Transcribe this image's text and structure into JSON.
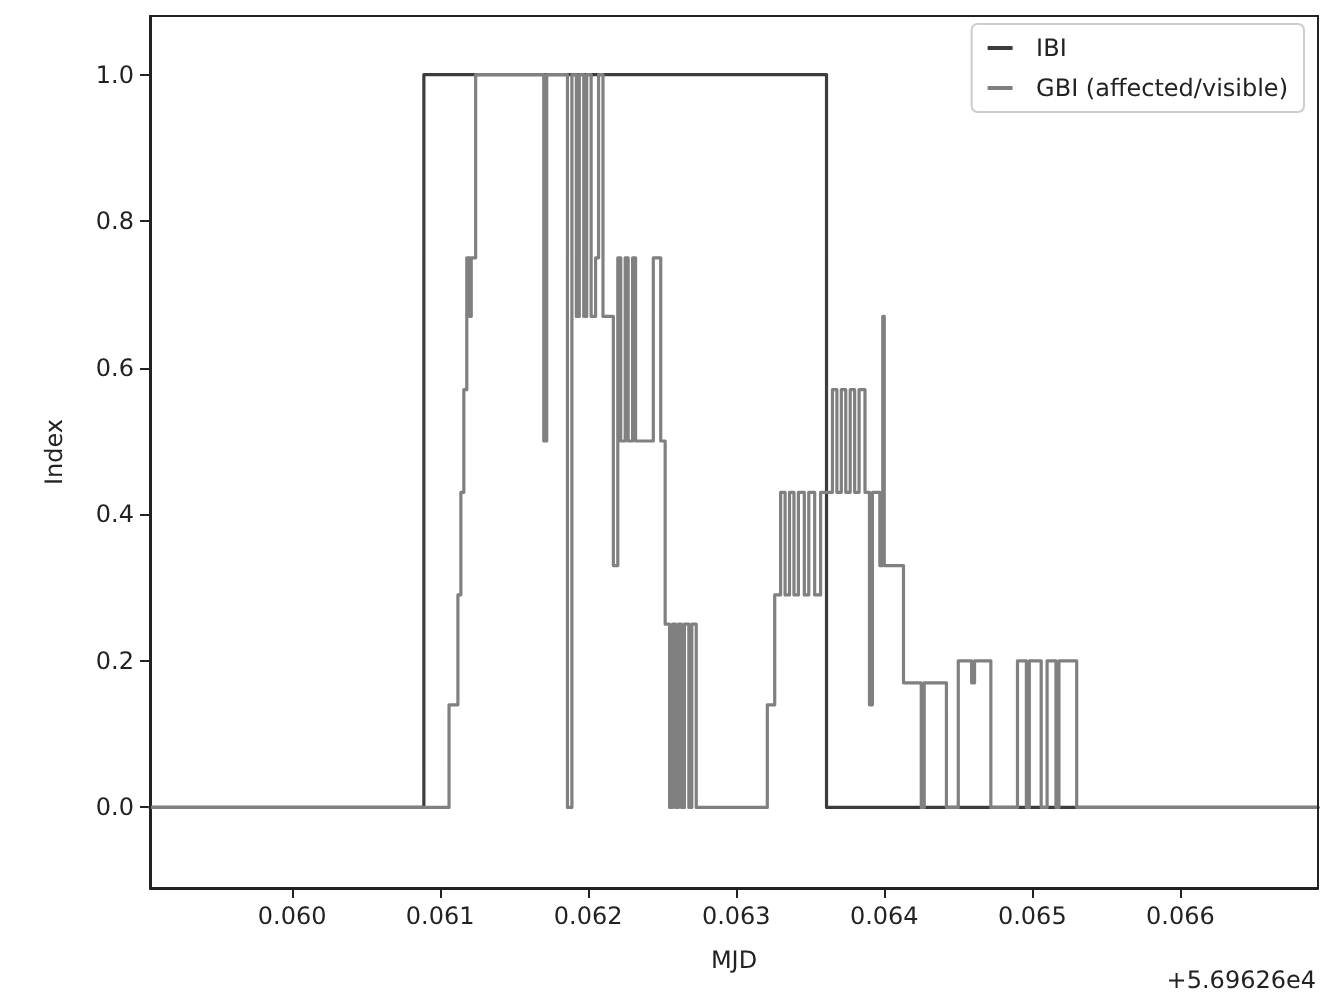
{
  "chart_data": {
    "type": "step",
    "xlabel": "MJD",
    "ylabel": "Index",
    "annotations": [
      "+5.69626e4"
    ],
    "xlim": [
      0.05904,
      0.06693
    ],
    "xticks": [
      {
        "value": 0.06,
        "label": "0.060"
      },
      {
        "value": 0.061,
        "label": "0.061"
      },
      {
        "value": 0.062,
        "label": "0.062"
      },
      {
        "value": 0.063,
        "label": "0.063"
      },
      {
        "value": 0.064,
        "label": "0.064"
      },
      {
        "value": 0.065,
        "label": "0.065"
      },
      {
        "value": 0.066,
        "label": "0.066"
      }
    ],
    "ylim": [
      -0.11,
      1.08
    ],
    "yticks": [
      {
        "value": 0,
        "label": "0.0"
      },
      {
        "value": 0.2,
        "label": "0.2"
      },
      {
        "value": 0.4,
        "label": "0.4"
      },
      {
        "value": 0.6,
        "label": "0.6"
      },
      {
        "value": 0.8,
        "label": "0.8"
      },
      {
        "value": 1.0,
        "label": "1.0"
      }
    ],
    "grid": false,
    "legend": "top right",
    "marker": "none",
    "line_style": "solid",
    "series": [
      {
        "name": "IBI",
        "color": "#3c3c3c",
        "x": [
          0.05904,
          0.06089,
          0.06361,
          0.06693
        ],
        "values": [
          0,
          1,
          0,
          0
        ]
      },
      {
        "name": "GBI (affected/visible)",
        "color": "#808080",
        "x": [
          0.05904,
          0.06106,
          0.06112,
          0.06114,
          0.06116,
          0.06118,
          0.0612,
          0.06121,
          0.06124,
          0.0617,
          0.06172,
          0.06186,
          0.06189,
          0.06192,
          0.06194,
          0.06197,
          0.06199,
          0.06202,
          0.06205,
          0.06207,
          0.0621,
          0.06217,
          0.0622,
          0.06222,
          0.06225,
          0.06227,
          0.0623,
          0.06232,
          0.06244,
          0.06249,
          0.06252,
          0.06255,
          0.06257,
          0.06259,
          0.06261,
          0.06263,
          0.06265,
          0.06268,
          0.0627,
          0.06273,
          0.06321,
          0.06326,
          0.0633,
          0.06333,
          0.06336,
          0.06339,
          0.06342,
          0.06346,
          0.06349,
          0.06353,
          0.06357,
          0.06365,
          0.06368,
          0.06371,
          0.06374,
          0.06377,
          0.0638,
          0.06383,
          0.06387,
          0.0639,
          0.06392,
          0.06397,
          0.06399,
          0.064,
          0.06413,
          0.06425,
          0.06427,
          0.06442,
          0.0645,
          0.06459,
          0.06461,
          0.06472,
          0.0649,
          0.06496,
          0.06498,
          0.06506,
          0.0651,
          0.06516,
          0.06518,
          0.0653,
          0.06693
        ],
        "values": [
          0,
          0.14,
          0.29,
          0.43,
          0.57,
          0.75,
          0.67,
          0.75,
          1.0,
          0.5,
          1.0,
          0,
          1.0,
          0.67,
          1.0,
          0.67,
          1.0,
          0.67,
          0.75,
          1.0,
          0.67,
          0.33,
          0.75,
          0.5,
          0.75,
          0.5,
          0.75,
          0.5,
          0.75,
          0.5,
          0.25,
          0,
          0.25,
          0,
          0.25,
          0,
          0.25,
          0,
          0.25,
          0,
          0.14,
          0.29,
          0.43,
          0.29,
          0.43,
          0.29,
          0.43,
          0.29,
          0.43,
          0.29,
          0.43,
          0.57,
          0.43,
          0.57,
          0.43,
          0.57,
          0.43,
          0.57,
          0.43,
          0.14,
          0.43,
          0.33,
          0.67,
          0.33,
          0.17,
          0,
          0.17,
          0,
          0.2,
          0.17,
          0.2,
          0,
          0.2,
          0,
          0.2,
          0,
          0.2,
          0,
          0.2,
          0,
          0
        ]
      }
    ]
  }
}
